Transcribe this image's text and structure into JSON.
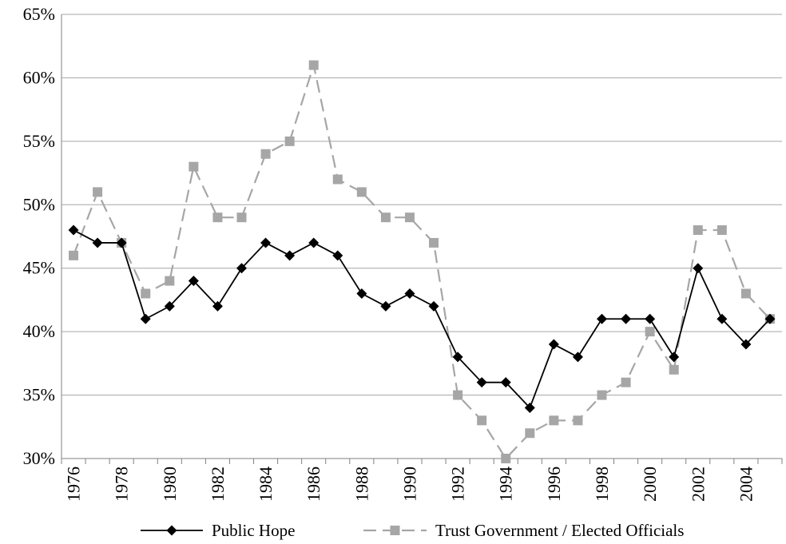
{
  "chart_data": {
    "type": "line",
    "title": "",
    "xlabel": "",
    "ylabel": "",
    "x": [
      1976,
      1977,
      1978,
      1979,
      1980,
      1981,
      1982,
      1983,
      1984,
      1985,
      1986,
      1987,
      1988,
      1989,
      1990,
      1991,
      1992,
      1993,
      1994,
      1995,
      1996,
      1997,
      1998,
      1999,
      2000,
      2001,
      2002,
      2003,
      2004,
      2005
    ],
    "x_tick_labels": [
      "1976",
      "1978",
      "1980",
      "1982",
      "1984",
      "1986",
      "1988",
      "1990",
      "1992",
      "1994",
      "1996",
      "1998",
      "2000",
      "2002",
      "2004"
    ],
    "y_tick_labels": [
      "30%",
      "35%",
      "40%",
      "45%",
      "50%",
      "55%",
      "60%",
      "65%"
    ],
    "ylim": [
      30,
      65
    ],
    "grid": "horizontal",
    "legend_position": "bottom",
    "series": [
      {
        "name": "Public Hope",
        "color": "#000000",
        "line_style": "solid",
        "marker": "diamond",
        "values": [
          48,
          47,
          47,
          41,
          42,
          44,
          42,
          45,
          47,
          46,
          47,
          46,
          43,
          42,
          43,
          42,
          38,
          36,
          36,
          34,
          39,
          38,
          41,
          41,
          41,
          38,
          45,
          41,
          39,
          41
        ]
      },
      {
        "name": "Trust Government / Elected Officials",
        "color": "#a6a6a6",
        "line_style": "dashed",
        "marker": "square",
        "values": [
          46,
          51,
          47,
          43,
          44,
          53,
          49,
          49,
          54,
          55,
          61,
          52,
          51,
          49,
          49,
          47,
          35,
          33,
          30,
          32,
          33,
          33,
          35,
          36,
          40,
          37,
          48,
          48,
          43,
          41
        ]
      }
    ]
  }
}
